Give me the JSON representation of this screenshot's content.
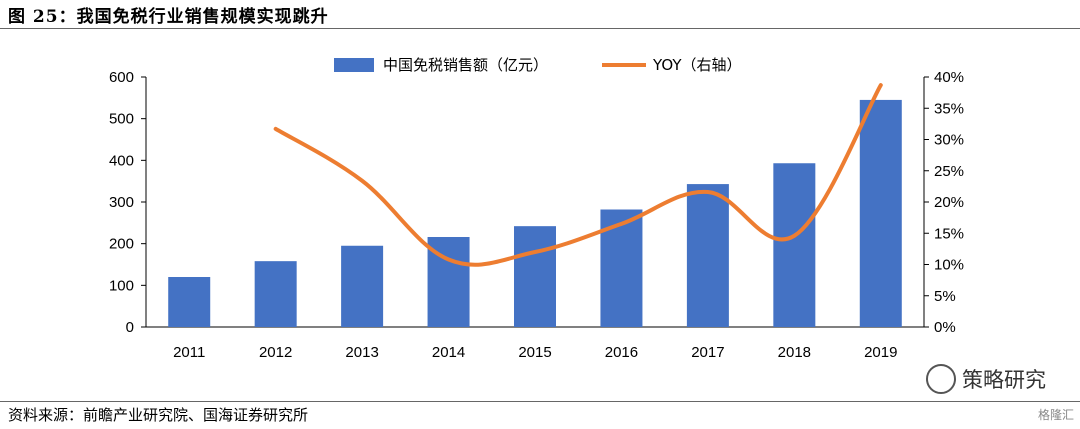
{
  "figure": {
    "title": "图 25：我国免税行业销售规模实现跳升",
    "source": "资料来源：前瞻产业研究院、国海证券研究所",
    "watermark": "策略研究",
    "watermark2": "格隆汇"
  },
  "chart_data": {
    "type": "bar",
    "categories": [
      "2011",
      "2012",
      "2013",
      "2014",
      "2015",
      "2016",
      "2017",
      "2018",
      "2019"
    ],
    "series": [
      {
        "name": "中国免税销售额（亿元）",
        "type": "bar",
        "axis": "left",
        "values": [
          120,
          158,
          195,
          216,
          242,
          282,
          343,
          393,
          545
        ]
      },
      {
        "name": "YOY（右轴）",
        "type": "line",
        "axis": "right",
        "values": [
          null,
          31.7,
          23.4,
          10.8,
          12.0,
          16.5,
          21.6,
          14.6,
          38.7
        ]
      }
    ],
    "ylim": [
      0,
      600
    ],
    "yticks": [
      "0",
      "100",
      "200",
      "300",
      "400",
      "500",
      "600"
    ],
    "y2lim": [
      0,
      40
    ],
    "y2ticks": [
      "0%",
      "5%",
      "10%",
      "15%",
      "20%",
      "25%",
      "30%",
      "35%",
      "40%"
    ],
    "legend": "top-center",
    "grid": false,
    "colors": {
      "bar": "#4472C4",
      "line": "#ED7D31"
    }
  }
}
